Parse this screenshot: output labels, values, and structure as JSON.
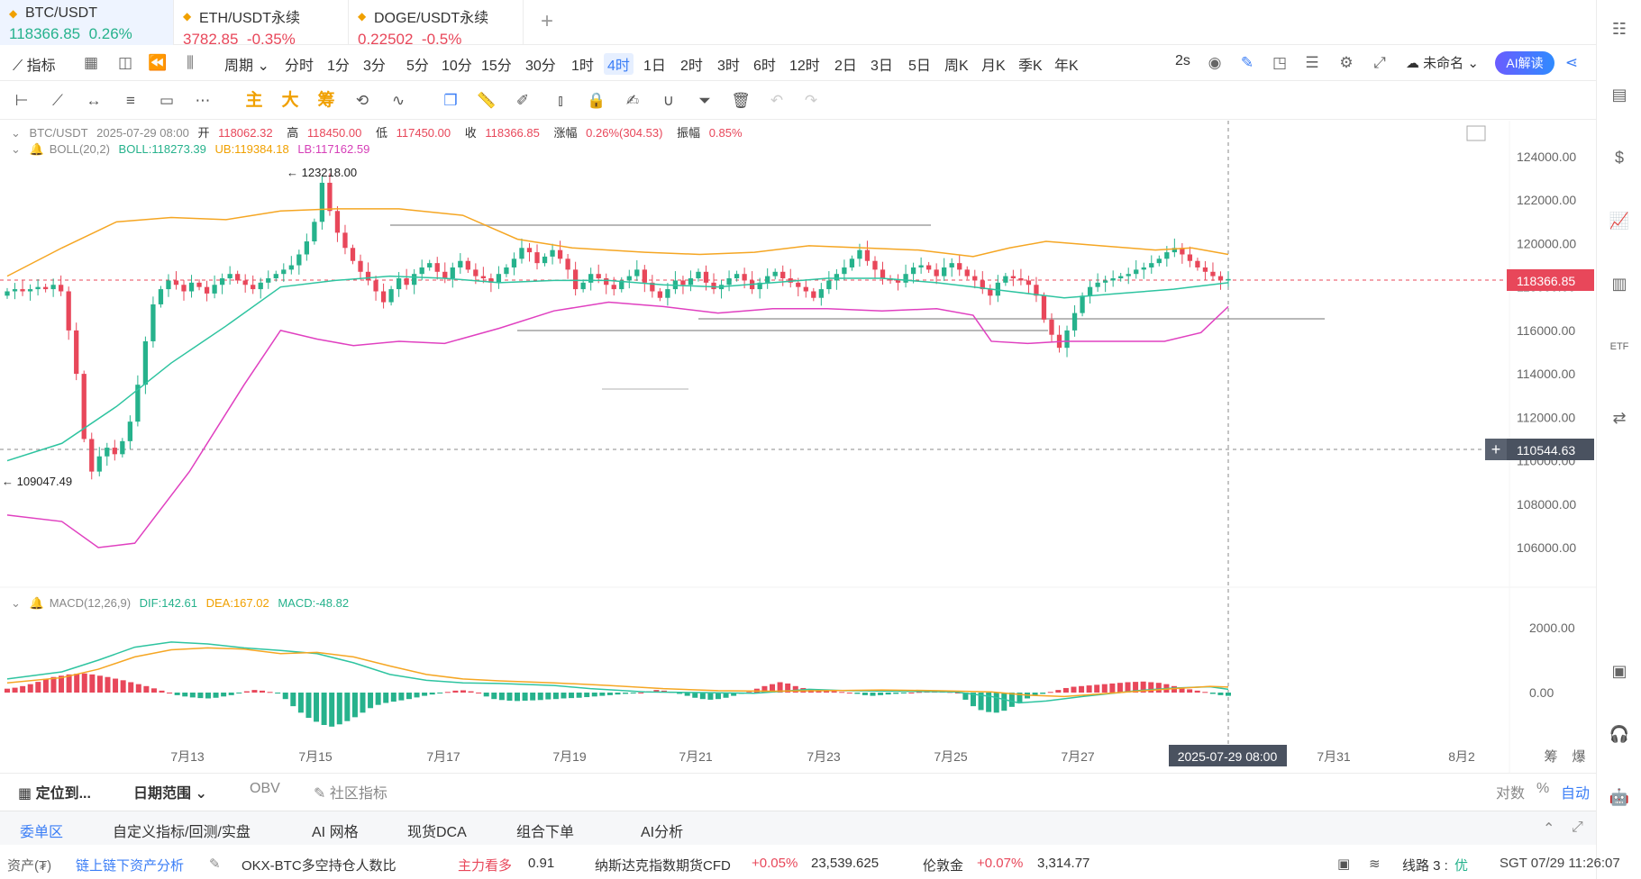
{
  "tickers": [
    {
      "symbol": "BTC/USDT",
      "price": "118366.85",
      "change": "0.26%",
      "up": true,
      "active": true
    },
    {
      "symbol": "ETH/USDT永续",
      "price": "3782.85",
      "change": "-0.35%",
      "up": false,
      "active": false
    },
    {
      "symbol": "DOGE/USDT永续",
      "price": "0.22502",
      "change": "-0.5%",
      "up": false,
      "active": false
    }
  ],
  "period_bar": {
    "indicator_label": "指标",
    "period_label": "周期",
    "periods": [
      "分时",
      "1分",
      "3分",
      "5分",
      "10分",
      "15分",
      "30分",
      "1时",
      "4时",
      "1日",
      "2时",
      "3时",
      "6时",
      "12时",
      "2日",
      "3日",
      "5日",
      "周K",
      "月K",
      "季K",
      "年K"
    ],
    "active_period": "4时",
    "refresh_label": "2s",
    "layout_name": "未命名",
    "ai_label": "AI解读"
  },
  "draw_bar": {
    "main_label": "主",
    "big_label": "大",
    "chips_label": "筹"
  },
  "legend": {
    "symbol": "BTC/USDT",
    "datetime": "2025-07-29 08:00",
    "open_label": "开",
    "open": "118062.32",
    "high_label": "高",
    "high": "118450.00",
    "low_label": "低",
    "low": "117450.00",
    "close_label": "收",
    "close": "118366.85",
    "change_label": "涨幅",
    "change": "0.26%(304.53)",
    "amp_label": "振幅",
    "amp": "0.85%",
    "boll_name": "BOLL(20,2)",
    "boll": "BOLL:118273.39",
    "ub": "UB:119384.18",
    "lb": "LB:117162.59",
    "macd_name": "MACD(12,26,9)",
    "dif": "DIF:142.61",
    "dea": "DEA:167.02",
    "macd": "MACD:-48.82"
  },
  "annotations": {
    "max": "123218.00",
    "min": "109047.49"
  },
  "price_tags": {
    "current": "118366.85",
    "cursor": "110544.63",
    "cursor_time": "2025-07-29 08:00"
  },
  "colors": {
    "up": "#26b28c",
    "down": "#e8475a",
    "boll_mid": "#2ec4a0",
    "boll_ub": "#f5a623",
    "boll_lb": "#e040c0",
    "dif": "#2ec4a0",
    "dea": "#f5a623"
  },
  "chart_data": {
    "type": "candlestick",
    "y_ticks": [
      "124000.00",
      "122000.00",
      "120000.00",
      "118000.00",
      "116000.00",
      "114000.00",
      "112000.00",
      "110000.00",
      "108000.00",
      "106000.00"
    ],
    "ylim": [
      105000,
      125000
    ],
    "macd_ticks": [
      "2000.00",
      "0.00"
    ],
    "x_labels": [
      "7月13",
      "7月15",
      "7月17",
      "7月19",
      "7月21",
      "7月23",
      "7月25",
      "7月27",
      "7月29",
      "7月31",
      "8月2"
    ],
    "closes": [
      117800,
      117900,
      117800,
      117900,
      118000,
      117900,
      118100,
      117800,
      116000,
      114000,
      111000,
      109500,
      110200,
      110600,
      110300,
      110900,
      111800,
      113500,
      115500,
      117200,
      117900,
      118300,
      118100,
      117800,
      118200,
      118000,
      117700,
      118100,
      118400,
      118600,
      118300,
      118100,
      117900,
      118200,
      118400,
      118600,
      118800,
      119000,
      119500,
      120100,
      121000,
      122800,
      121500,
      120500,
      119800,
      119200,
      118700,
      118300,
      117800,
      117300,
      117900,
      118400,
      118100,
      118600,
      118900,
      119100,
      118700,
      118400,
      118900,
      119200,
      118800,
      118500,
      118400,
      118200,
      118600,
      118900,
      119300,
      119800,
      119600,
      119100,
      119400,
      119700,
      119300,
      118800,
      117900,
      118200,
      118600,
      118400,
      118100,
      117900,
      118300,
      118500,
      118800,
      118200,
      117800,
      117500,
      117900,
      118300,
      118100,
      118400,
      118700,
      118200,
      117900,
      118100,
      118400,
      118600,
      118300,
      117900,
      118200,
      118500,
      118700,
      118400,
      118200,
      118000,
      117800,
      117500,
      117900,
      118300,
      118600,
      118900,
      119300,
      119700,
      119200,
      118800,
      118400,
      118300,
      118200,
      118600,
      118900,
      119000,
      118800,
      118500,
      118900,
      119100,
      118800,
      118500,
      118300,
      117900,
      117600,
      118200,
      118500,
      118400,
      118300,
      118100,
      117600,
      116500,
      115800,
      115200,
      116000,
      116800,
      117600,
      118000,
      118200,
      118300,
      118400,
      118500,
      118600,
      118800,
      118900,
      119100,
      119300,
      119600,
      119800,
      119500,
      119200,
      118900,
      118700,
      118500,
      118300,
      118366.85
    ],
    "boll_ub_pts": [
      [
        0,
        118500
      ],
      [
        60,
        119800
      ],
      [
        120,
        121000
      ],
      [
        180,
        121200
      ],
      [
        240,
        121100
      ],
      [
        300,
        121500
      ],
      [
        360,
        121600
      ],
      [
        430,
        121600
      ],
      [
        500,
        121300
      ],
      [
        560,
        120200
      ],
      [
        620,
        119800
      ],
      [
        700,
        119600
      ],
      [
        760,
        119500
      ],
      [
        820,
        119600
      ],
      [
        880,
        119900
      ],
      [
        940,
        119800
      ],
      [
        1000,
        119700
      ],
      [
        1060,
        119400
      ],
      [
        1100,
        119800
      ],
      [
        1140,
        120100
      ],
      [
        1200,
        119900
      ],
      [
        1260,
        119700
      ],
      [
        1300,
        119800
      ],
      [
        1340,
        119500
      ]
    ],
    "boll_lb_pts": [
      [
        0,
        107500
      ],
      [
        60,
        107200
      ],
      [
        100,
        106000
      ],
      [
        140,
        106200
      ],
      [
        200,
        109500
      ],
      [
        260,
        113500
      ],
      [
        300,
        116000
      ],
      [
        340,
        115600
      ],
      [
        380,
        115300
      ],
      [
        430,
        115500
      ],
      [
        480,
        115400
      ],
      [
        540,
        116100
      ],
      [
        600,
        116900
      ],
      [
        660,
        117300
      ],
      [
        720,
        117100
      ],
      [
        780,
        116800
      ],
      [
        840,
        117000
      ],
      [
        900,
        117000
      ],
      [
        960,
        116900
      ],
      [
        1020,
        117000
      ],
      [
        1060,
        116700
      ],
      [
        1080,
        115500
      ],
      [
        1120,
        115400
      ],
      [
        1160,
        115500
      ],
      [
        1220,
        115500
      ],
      [
        1270,
        115500
      ],
      [
        1310,
        115900
      ],
      [
        1340,
        117100
      ]
    ],
    "boll_mid_pts": [
      [
        0,
        110000
      ],
      [
        60,
        110800
      ],
      [
        120,
        112500
      ],
      [
        180,
        114500
      ],
      [
        240,
        116200
      ],
      [
        300,
        118000
      ],
      [
        360,
        118300
      ],
      [
        420,
        118500
      ],
      [
        480,
        118400
      ],
      [
        540,
        118200
      ],
      [
        600,
        118300
      ],
      [
        660,
        118300
      ],
      [
        720,
        118100
      ],
      [
        780,
        118000
      ],
      [
        840,
        118200
      ],
      [
        900,
        118400
      ],
      [
        960,
        118400
      ],
      [
        1020,
        118200
      ],
      [
        1060,
        118000
      ],
      [
        1100,
        117800
      ],
      [
        1160,
        117500
      ],
      [
        1220,
        117700
      ],
      [
        1280,
        117900
      ],
      [
        1340,
        118200
      ]
    ],
    "macd_hist": [
      120,
      150,
      200,
      260,
      330,
      420,
      480,
      520,
      560,
      580,
      590,
      560,
      520,
      480,
      430,
      380,
      320,
      260,
      200,
      130,
      60,
      0,
      -80,
      -120,
      -150,
      -170,
      -180,
      -160,
      -120,
      -80,
      -20,
      40,
      80,
      60,
      20,
      -30,
      -200,
      -420,
      -620,
      -780,
      -900,
      -1000,
      -1050,
      -980,
      -880,
      -760,
      -620,
      -480,
      -380,
      -320,
      -280,
      -240,
      -200,
      -150,
      -100,
      -60,
      -20,
      20,
      60,
      70,
      40,
      0,
      -120,
      -200,
      -230,
      -250,
      -260,
      -250,
      -240,
      -230,
      -210,
      -200,
      -180,
      -170,
      -160,
      -140,
      -120,
      -100,
      -80,
      -60,
      -40,
      -20,
      0,
      40,
      80,
      60,
      20,
      -40,
      -100,
      -160,
      -200,
      -220,
      -200,
      -160,
      -100,
      -40,
      20,
      120,
      200,
      260,
      320,
      280,
      200,
      140,
      100,
      80,
      60,
      40,
      20,
      0,
      -40,
      -80,
      -100,
      -80,
      -60,
      -40,
      -20,
      0,
      20,
      40,
      60,
      40,
      20,
      0,
      -220,
      -420,
      -540,
      -600,
      -620,
      -560,
      -440,
      -300,
      -180,
      -100,
      -40,
      20,
      80,
      140,
      180,
      200,
      220,
      240,
      260,
      280,
      300,
      320,
      330,
      340,
      320,
      300,
      260,
      200,
      140,
      100,
      60,
      20,
      -40,
      -80,
      -100
    ],
    "dif_pts": [
      [
        0,
        420
      ],
      [
        60,
        640
      ],
      [
        100,
        1000
      ],
      [
        140,
        1400
      ],
      [
        180,
        1560
      ],
      [
        220,
        1500
      ],
      [
        260,
        1380
      ],
      [
        300,
        1300
      ],
      [
        340,
        1200
      ],
      [
        380,
        920
      ],
      [
        420,
        560
      ],
      [
        460,
        380
      ],
      [
        500,
        300
      ],
      [
        540,
        280
      ],
      [
        600,
        220
      ],
      [
        640,
        120
      ],
      [
        700,
        20
      ],
      [
        760,
        0
      ],
      [
        820,
        -20
      ],
      [
        880,
        100
      ],
      [
        920,
        60
      ],
      [
        980,
        40
      ],
      [
        1040,
        20
      ],
      [
        1080,
        -120
      ],
      [
        1110,
        -320
      ],
      [
        1140,
        -260
      ],
      [
        1180,
        -120
      ],
      [
        1240,
        60
      ],
      [
        1280,
        140
      ],
      [
        1320,
        180
      ],
      [
        1340,
        100
      ]
    ],
    "dea_pts": [
      [
        0,
        300
      ],
      [
        60,
        460
      ],
      [
        100,
        720
      ],
      [
        140,
        1100
      ],
      [
        180,
        1320
      ],
      [
        220,
        1380
      ],
      [
        260,
        1340
      ],
      [
        300,
        1200
      ],
      [
        340,
        1240
      ],
      [
        380,
        1100
      ],
      [
        420,
        820
      ],
      [
        460,
        560
      ],
      [
        500,
        420
      ],
      [
        540,
        360
      ],
      [
        600,
        300
      ],
      [
        660,
        220
      ],
      [
        720,
        120
      ],
      [
        780,
        60
      ],
      [
        840,
        40
      ],
      [
        900,
        60
      ],
      [
        960,
        80
      ],
      [
        1020,
        60
      ],
      [
        1080,
        20
      ],
      [
        1120,
        -80
      ],
      [
        1160,
        -120
      ],
      [
        1220,
        0
      ],
      [
        1280,
        120
      ],
      [
        1320,
        190
      ],
      [
        1340,
        170
      ]
    ]
  },
  "bottom_tools": {
    "locate": "定位到...",
    "range": "日期范围",
    "obv": "OBV",
    "community": "社区指标",
    "log": "对数",
    "pct": "%",
    "auto": "自动"
  },
  "bottom_tabs": [
    "委单区",
    "自定义指标/回测/实盘",
    "AI 网格",
    "现货DCA",
    "组合下单",
    "AI分析"
  ],
  "status": {
    "assets": "资产(₮)",
    "onchain": "链上链下资产分析",
    "okx_label": "OKX-BTC多空持仓人数比",
    "okx_sentiment": "主力看多",
    "okx_value": "0.91",
    "nasdaq_label": "纳斯达克指数期货CFD",
    "nasdaq_change": "+0.05%",
    "nasdaq_value": "23,539.625",
    "gold_label": "伦敦金",
    "gold_change": "+0.07%",
    "gold_value": "3,314.77",
    "line_label": "线路 3 :",
    "line_quality": "优",
    "time": "SGT 07/29 11:26:07"
  },
  "right_axis_extra": {
    "chips": "筹",
    "blast": "爆"
  }
}
